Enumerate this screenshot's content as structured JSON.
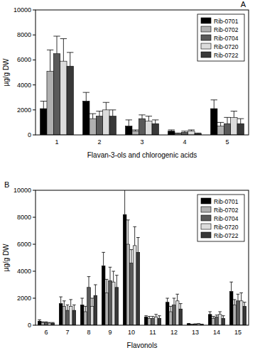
{
  "chart_data": [
    {
      "type": "bar",
      "title": "A",
      "y_label": "µg/g DW",
      "x_label": "Flavan-3-ols and chlorogenic acids",
      "categories": [
        "1",
        "2",
        "3",
        "4",
        "5"
      ],
      "ylim": [
        0,
        10000
      ],
      "yticks": [
        0,
        2000,
        4000,
        6000,
        8000,
        10000
      ],
      "legend": "top-right",
      "series": [
        {
          "name": "Rib-0701",
          "color": "#000000",
          "values": [
            2100,
            2700,
            700,
            300,
            2100
          ],
          "errors": [
            600,
            700,
            500,
            100,
            700
          ]
        },
        {
          "name": "Rib-0702",
          "color": "#b0b0b0",
          "values": [
            5100,
            1300,
            300,
            100,
            700
          ],
          "errors": [
            1700,
            400,
            100,
            50,
            300
          ]
        },
        {
          "name": "Rib-0704",
          "color": "#5a5a5a",
          "values": [
            6500,
            1500,
            1300,
            200,
            900
          ],
          "errors": [
            1400,
            400,
            300,
            100,
            500
          ]
        },
        {
          "name": "Rib-0720",
          "color": "#dcdcdc",
          "values": [
            5900,
            2000,
            1100,
            300,
            1400
          ],
          "errors": [
            1800,
            600,
            400,
            100,
            500
          ]
        },
        {
          "name": "Rib-0722",
          "color": "#383838",
          "values": [
            5500,
            1500,
            900,
            100,
            900
          ],
          "errors": [
            1100,
            500,
            300,
            50,
            400
          ]
        }
      ]
    },
    {
      "type": "bar",
      "title": "B",
      "y_label": "µg/g DW",
      "x_label": "Flavonols",
      "categories": [
        "6",
        "7",
        "8",
        "9",
        "10",
        "11",
        "12",
        "13",
        "14",
        "15"
      ],
      "ylim": [
        0,
        10000
      ],
      "yticks": [
        0,
        2000,
        4000,
        6000,
        8000,
        10000
      ],
      "legend": "top-right",
      "series": [
        {
          "name": "Rib-0701",
          "color": "#000000",
          "values": [
            300,
            1600,
            1500,
            4400,
            8200,
            600,
            1700,
            100,
            800,
            2500
          ],
          "errors": [
            100,
            500,
            500,
            1000,
            2000,
            100,
            300,
            30,
            200,
            700
          ]
        },
        {
          "name": "Rib-0702",
          "color": "#b0b0b0",
          "values": [
            200,
            1400,
            1000,
            2400,
            6000,
            500,
            1000,
            50,
            500,
            1500
          ],
          "errors": [
            50,
            400,
            400,
            1000,
            1800,
            150,
            400,
            20,
            150,
            400
          ]
        },
        {
          "name": "Rib-0704",
          "color": "#5a5a5a",
          "values": [
            200,
            1100,
            2800,
            3300,
            4600,
            500,
            1500,
            80,
            600,
            1800
          ],
          "errors": [
            50,
            400,
            800,
            1000,
            1000,
            150,
            500,
            20,
            150,
            500
          ]
        },
        {
          "name": "Rib-0720",
          "color": "#dcdcdc",
          "values": [
            150,
            1400,
            1400,
            3200,
            5900,
            600,
            1800,
            100,
            800,
            1800
          ],
          "errors": [
            50,
            500,
            600,
            800,
            1400,
            200,
            500,
            20,
            200,
            600
          ]
        },
        {
          "name": "Rib-0722",
          "color": "#383838",
          "values": [
            150,
            1100,
            2200,
            2800,
            5400,
            500,
            1200,
            50,
            500,
            1400
          ],
          "errors": [
            50,
            400,
            800,
            900,
            1100,
            200,
            400,
            20,
            200,
            300
          ]
        }
      ]
    }
  ]
}
